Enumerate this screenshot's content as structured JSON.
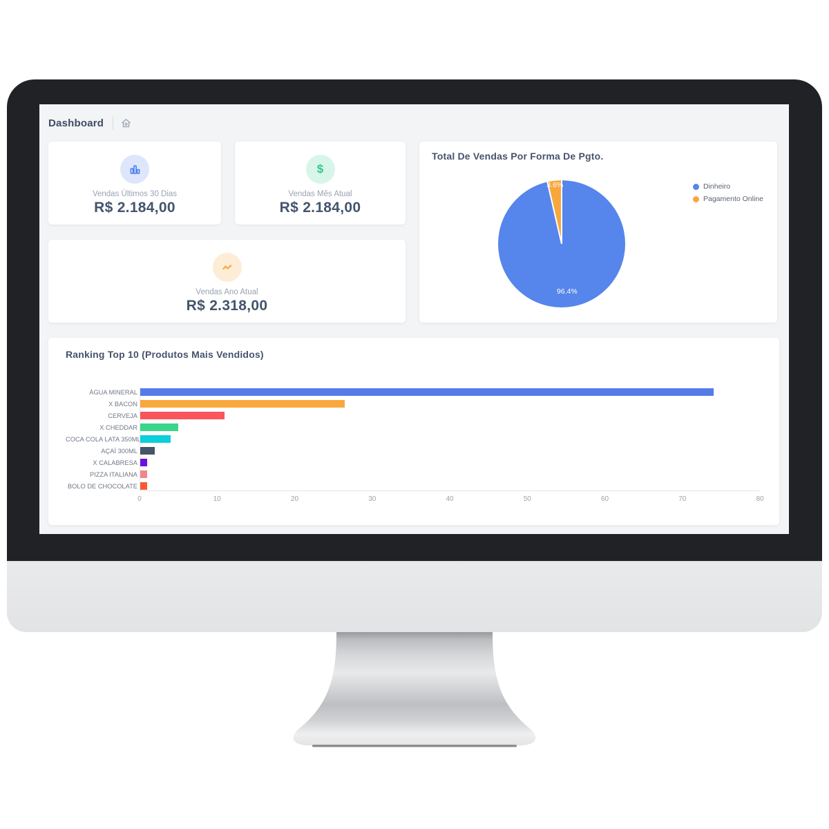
{
  "header": {
    "title": "Dashboard"
  },
  "stats": [
    {
      "label": "Vendas Últimos 30 Dias",
      "value": "R$ 2.184,00",
      "icon": "bar-chart-icon",
      "icon_color": "#4C7CF0",
      "icon_bg": "#DDE6FB"
    },
    {
      "label": "Vendas Mês Atual",
      "value": "R$ 2.184,00",
      "icon": "dollar-icon",
      "icon_color": "#2EC98C",
      "icon_bg": "#D8F5E9"
    },
    {
      "label": "Vendas Ano Atual",
      "value": "R$ 2.318,00",
      "icon": "trend-zigzag-icon",
      "icon_color": "#F5A93E",
      "icon_bg": "#FDEDD6"
    }
  ],
  "chart_data": [
    {
      "type": "pie",
      "title": "Total De Vendas Por Forma De Pgto.",
      "legend_position": "right",
      "slices": [
        {
          "label": "Dinheiro",
          "percent": 96.4,
          "display": "96.4%",
          "color": "#5685EB"
        },
        {
          "label": "Pagamento Online",
          "percent": 3.6,
          "display": "3.6%",
          "color": "#F7A73C"
        }
      ]
    },
    {
      "type": "bar",
      "title": "Ranking Top 10 (Produtos Mais Vendidos)",
      "orientation": "horizontal",
      "categories": [
        "ÁGUA MINERAL",
        "X BACON",
        "CERVEJA",
        "X CHEDDAR",
        "COCA COLA LATA 350ML",
        "AÇAÍ 300ML",
        "X CALABRESA",
        "PIZZA ITALIANA",
        "BOLO DE CHOCOLATE"
      ],
      "values": [
        74,
        26.5,
        11,
        5,
        4,
        2,
        1,
        1,
        1
      ],
      "colors": [
        "#567CE8",
        "#F9A83E",
        "#FA555C",
        "#38D68B",
        "#0BCFDB",
        "#43566A",
        "#6D0EE8",
        "#F2858B",
        "#F95A36"
      ],
      "xlabel": "",
      "ylabel": "",
      "xlim": [
        0,
        80
      ],
      "xticks": [
        0,
        10,
        20,
        30,
        40,
        50,
        60,
        70,
        80
      ],
      "grid": false
    }
  ]
}
